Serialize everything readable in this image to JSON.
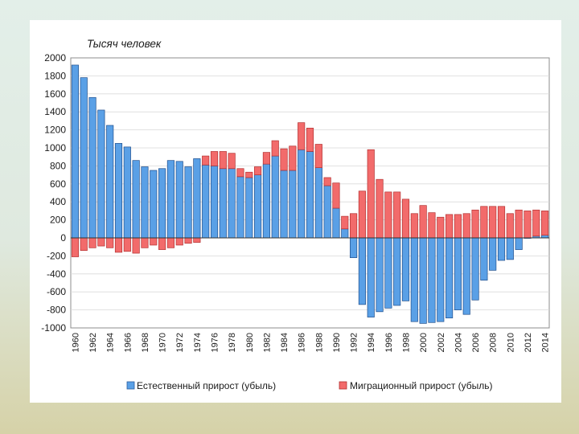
{
  "chart_data": {
    "type": "bar",
    "stacked": true,
    "unit_label": "Тысяч человек",
    "x": [
      1960,
      1961,
      1962,
      1963,
      1964,
      1965,
      1966,
      1967,
      1968,
      1969,
      1970,
      1971,
      1972,
      1973,
      1974,
      1975,
      1976,
      1977,
      1978,
      1979,
      1980,
      1981,
      1982,
      1983,
      1984,
      1985,
      1986,
      1987,
      1988,
      1989,
      1990,
      1991,
      1992,
      1993,
      1994,
      1995,
      1996,
      1997,
      1998,
      1999,
      2000,
      2001,
      2002,
      2003,
      2004,
      2005,
      2006,
      2007,
      2008,
      2009,
      2010,
      2011,
      2012,
      2013,
      2014
    ],
    "x_tick_labels": [
      "1960",
      "1962",
      "1964",
      "1966",
      "1968",
      "1970",
      "1972",
      "1974",
      "1976",
      "1978",
      "1980",
      "1982",
      "1984",
      "1986",
      "1988",
      "1990",
      "1992",
      "1994",
      "1996",
      "1998",
      "2000",
      "2002",
      "2004",
      "2006",
      "2008",
      "2010",
      "2012",
      "2014"
    ],
    "ylim": [
      -1000,
      2000
    ],
    "y_ticks": [
      2000,
      1800,
      1600,
      1400,
      1200,
      1000,
      800,
      600,
      400,
      200,
      0,
      -200,
      -400,
      -600,
      -800,
      -1000
    ],
    "series": [
      {
        "name": "Естественный прирост (убыль)",
        "color": "#5aa0e6",
        "values": [
          1920,
          1780,
          1560,
          1420,
          1250,
          1050,
          1010,
          860,
          790,
          750,
          770,
          860,
          850,
          790,
          880,
          810,
          800,
          770,
          770,
          680,
          670,
          700,
          820,
          910,
          750,
          750,
          980,
          960,
          780,
          580,
          330,
          100,
          -220,
          -740,
          -880,
          -820,
          -780,
          -750,
          -700,
          -930,
          -950,
          -940,
          -930,
          -890,
          -800,
          -850,
          -690,
          -470,
          -360,
          -250,
          -240,
          -130,
          -5,
          20,
          30
        ]
      },
      {
        "name": "Миграционный прирост (убыль)",
        "color": "#f26b6b",
        "values": [
          -210,
          -140,
          -110,
          -90,
          -110,
          -160,
          -150,
          -170,
          -110,
          -80,
          -130,
          -110,
          -80,
          -60,
          -50,
          100,
          160,
          190,
          170,
          90,
          60,
          90,
          130,
          170,
          240,
          270,
          300,
          260,
          260,
          90,
          280,
          140,
          270,
          520,
          980,
          650,
          510,
          510,
          430,
          270,
          360,
          280,
          230,
          260,
          260,
          270,
          310,
          350,
          350,
          350,
          270,
          310,
          300,
          290,
          270
        ]
      }
    ]
  }
}
